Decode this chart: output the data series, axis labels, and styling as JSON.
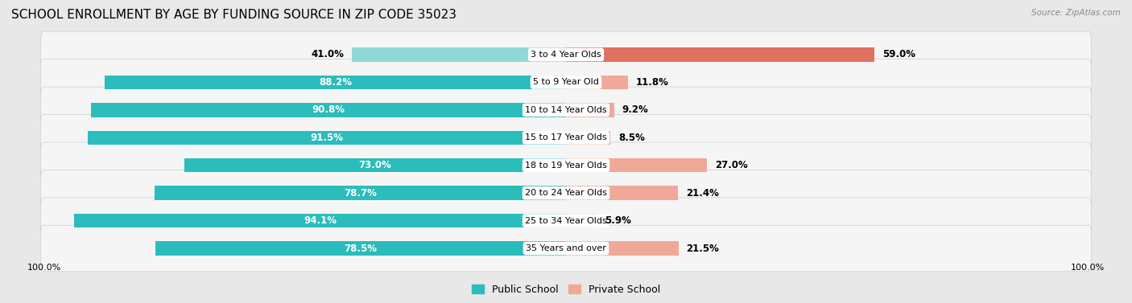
{
  "title": "SCHOOL ENROLLMENT BY AGE BY FUNDING SOURCE IN ZIP CODE 35023",
  "source": "Source: ZipAtlas.com",
  "categories": [
    "3 to 4 Year Olds",
    "5 to 9 Year Old",
    "10 to 14 Year Olds",
    "15 to 17 Year Olds",
    "18 to 19 Year Olds",
    "20 to 24 Year Olds",
    "25 to 34 Year Olds",
    "35 Years and over"
  ],
  "public_values": [
    41.0,
    88.2,
    90.8,
    91.5,
    73.0,
    78.7,
    94.1,
    78.5
  ],
  "private_values": [
    59.0,
    11.8,
    9.2,
    8.5,
    27.0,
    21.4,
    5.9,
    21.5
  ],
  "public_color_normal": "#2BBCBC",
  "public_color_light": "#8FD8D8",
  "private_color_dark": "#E07060",
  "private_color_light": "#F0A898",
  "public_label": "Public School",
  "private_label": "Private School",
  "bg_color": "#e8e8e8",
  "row_bg_color": "#f5f5f5",
  "axis_label_left": "100.0%",
  "axis_label_right": "100.0%",
  "title_fontsize": 11,
  "bar_label_fontsize": 8.5,
  "category_fontsize": 8,
  "legend_fontsize": 9,
  "public_threshold": 50,
  "private_threshold": 20
}
